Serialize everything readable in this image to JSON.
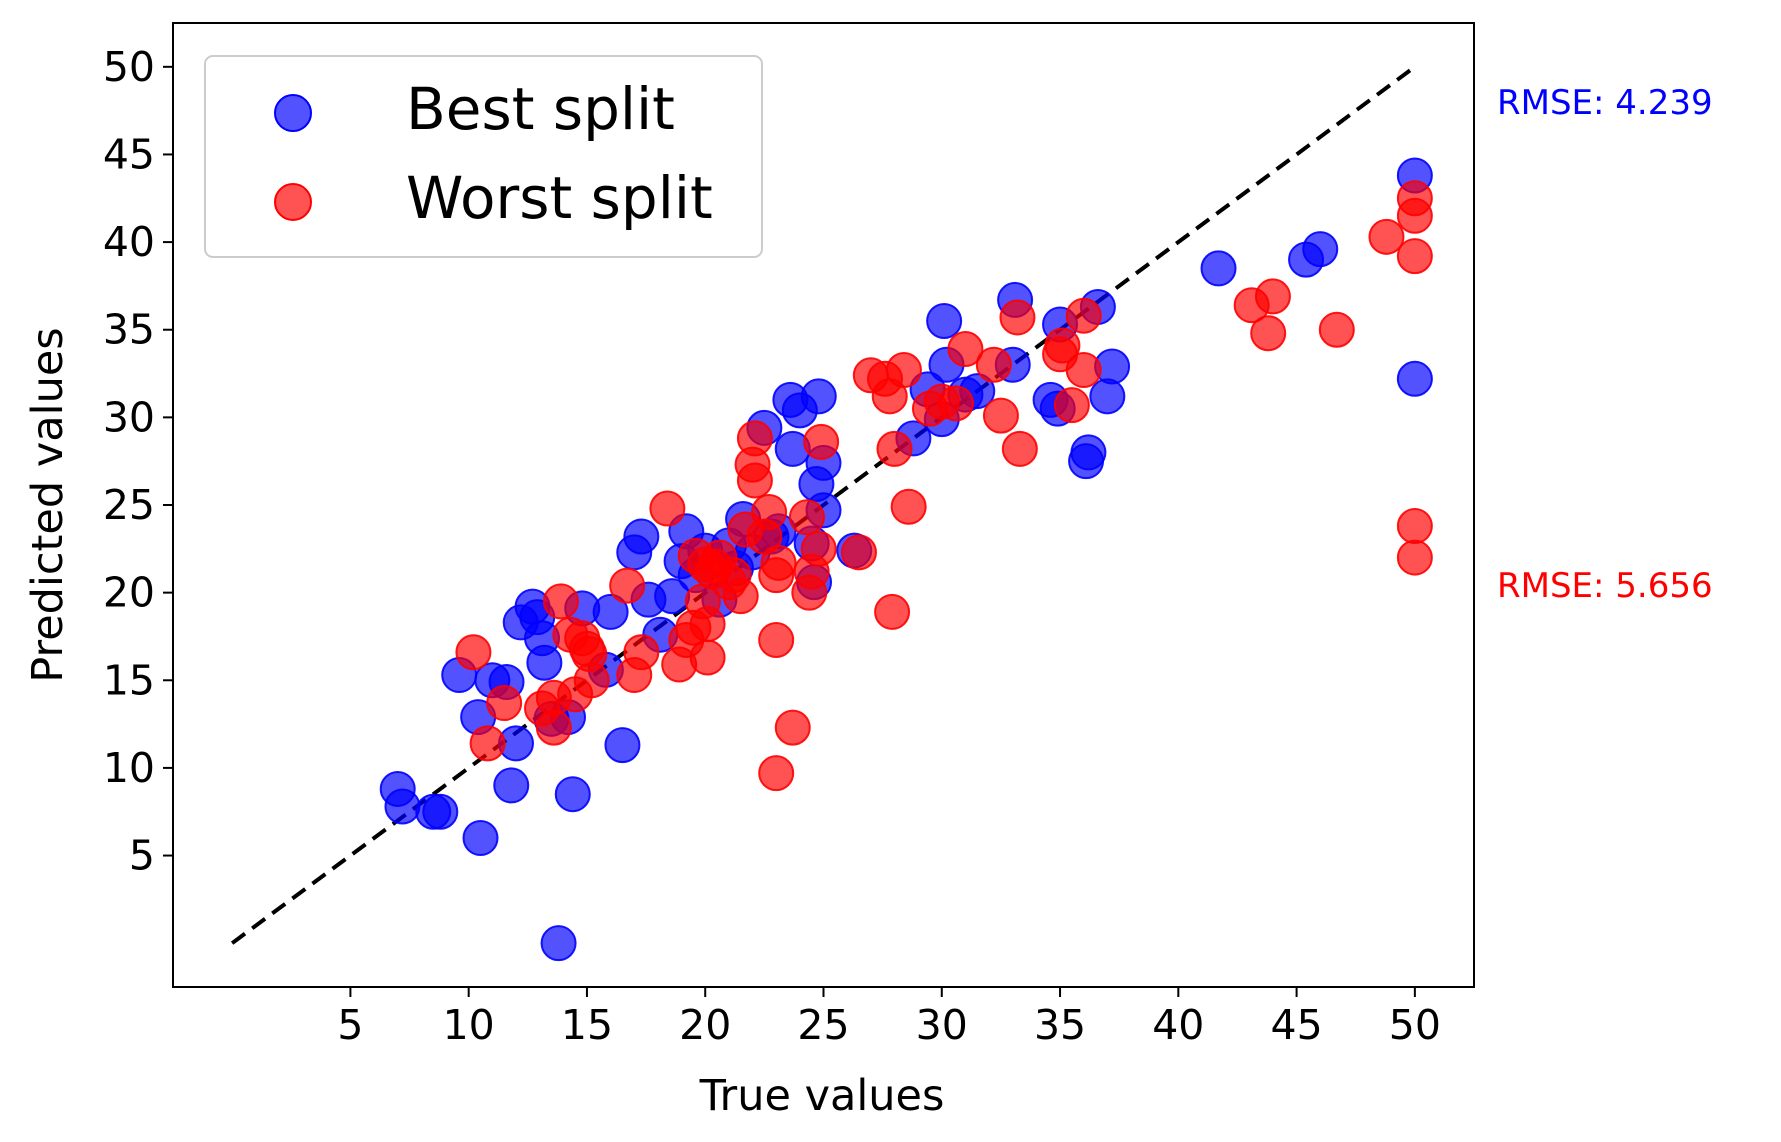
{
  "chart_data": {
    "type": "scatter",
    "title": "",
    "xlabel": "True values",
    "ylabel": "Predicted values",
    "xlim": [
      -2.5,
      52.5
    ],
    "ylim": [
      -2.5,
      52.5
    ],
    "xticks": [
      5,
      10,
      15,
      20,
      25,
      30,
      35,
      40,
      45,
      50
    ],
    "yticks": [
      5,
      10,
      15,
      20,
      25,
      30,
      35,
      40,
      45,
      50
    ],
    "grid": false,
    "legend_position": "top-left",
    "reference_line": {
      "style": "dashed",
      "color": "#000000",
      "from": [
        0,
        0
      ],
      "to": [
        50,
        50
      ]
    },
    "annotations": [
      {
        "text": "RMSE: 4.239",
        "color": "#0000ff"
      },
      {
        "text": "RMSE: 5.656",
        "color": "#ff0000"
      }
    ],
    "series": [
      {
        "name": "Best split",
        "color": "#0000ff",
        "points": [
          [
            7.0,
            8.8
          ],
          [
            7.2,
            7.8
          ],
          [
            8.5,
            7.5
          ],
          [
            8.8,
            7.5
          ],
          [
            9.6,
            15.3
          ],
          [
            10.4,
            12.9
          ],
          [
            10.5,
            6.0
          ],
          [
            11.0,
            15.0
          ],
          [
            11.6,
            14.9
          ],
          [
            11.8,
            9.0
          ],
          [
            12.0,
            11.4
          ],
          [
            12.2,
            18.3
          ],
          [
            12.7,
            19.2
          ],
          [
            12.9,
            18.6
          ],
          [
            13.1,
            17.4
          ],
          [
            13.2,
            16.0
          ],
          [
            13.5,
            12.8
          ],
          [
            13.8,
            0.0
          ],
          [
            14.2,
            12.9
          ],
          [
            14.4,
            8.5
          ],
          [
            14.8,
            19.1
          ],
          [
            15.8,
            15.6
          ],
          [
            16.0,
            18.9
          ],
          [
            16.5,
            11.3
          ],
          [
            17.0,
            22.3
          ],
          [
            17.3,
            23.2
          ],
          [
            17.6,
            19.6
          ],
          [
            18.1,
            17.6
          ],
          [
            18.6,
            19.8
          ],
          [
            19.0,
            21.8
          ],
          [
            19.2,
            23.5
          ],
          [
            19.6,
            21.0
          ],
          [
            20.0,
            22.4
          ],
          [
            20.6,
            19.6
          ],
          [
            21.0,
            22.7
          ],
          [
            21.3,
            21.4
          ],
          [
            21.6,
            24.2
          ],
          [
            22.0,
            22.3
          ],
          [
            22.5,
            29.4
          ],
          [
            22.8,
            23.2
          ],
          [
            23.1,
            23.5
          ],
          [
            23.6,
            31.0
          ],
          [
            23.7,
            28.2
          ],
          [
            24.0,
            30.4
          ],
          [
            24.7,
            26.2
          ],
          [
            24.8,
            31.2
          ],
          [
            25.0,
            27.4
          ],
          [
            25.0,
            24.7
          ],
          [
            24.5,
            22.8
          ],
          [
            24.6,
            20.6
          ],
          [
            26.3,
            22.4
          ],
          [
            28.8,
            28.8
          ],
          [
            29.4,
            31.6
          ],
          [
            30.0,
            29.9
          ],
          [
            30.1,
            35.5
          ],
          [
            30.2,
            33.0
          ],
          [
            31.0,
            31.3
          ],
          [
            31.5,
            31.5
          ],
          [
            33.0,
            33.0
          ],
          [
            33.1,
            36.7
          ],
          [
            34.6,
            31.0
          ],
          [
            34.9,
            30.5
          ],
          [
            35.0,
            35.3
          ],
          [
            36.2,
            28.0
          ],
          [
            36.1,
            27.5
          ],
          [
            36.6,
            36.3
          ],
          [
            37.0,
            31.2
          ],
          [
            37.2,
            32.9
          ],
          [
            41.7,
            38.5
          ],
          [
            45.4,
            39.0
          ],
          [
            46.0,
            39.6
          ],
          [
            50.0,
            43.8
          ],
          [
            50.0,
            32.2
          ]
        ]
      },
      {
        "name": "Worst split",
        "color": "#ff0000",
        "points": [
          [
            10.2,
            16.6
          ],
          [
            10.8,
            11.4
          ],
          [
            11.5,
            13.7
          ],
          [
            13.1,
            13.4
          ],
          [
            13.6,
            12.3
          ],
          [
            13.6,
            14.0
          ],
          [
            13.9,
            19.5
          ],
          [
            14.3,
            17.6
          ],
          [
            14.5,
            14.2
          ],
          [
            14.8,
            17.4
          ],
          [
            15.0,
            16.8
          ],
          [
            15.2,
            15.0
          ],
          [
            15.1,
            16.5
          ],
          [
            16.7,
            20.4
          ],
          [
            17.0,
            15.3
          ],
          [
            17.3,
            16.6
          ],
          [
            18.4,
            24.8
          ],
          [
            18.9,
            15.9
          ],
          [
            19.2,
            17.3
          ],
          [
            19.5,
            18.0
          ],
          [
            19.6,
            22.1
          ],
          [
            19.9,
            19.5
          ],
          [
            20.0,
            21.6
          ],
          [
            20.1,
            18.2
          ],
          [
            20.1,
            16.3
          ],
          [
            20.3,
            21.2
          ],
          [
            20.6,
            22.0
          ],
          [
            21.0,
            20.6
          ],
          [
            21.5,
            19.8
          ],
          [
            21.7,
            23.6
          ],
          [
            22.0,
            27.3
          ],
          [
            22.1,
            28.8
          ],
          [
            22.1,
            26.4
          ],
          [
            22.5,
            23.2
          ],
          [
            22.7,
            24.6
          ],
          [
            23.0,
            21.0
          ],
          [
            23.1,
            21.7
          ],
          [
            23.0,
            17.3
          ],
          [
            23.0,
            9.7
          ],
          [
            23.7,
            12.3
          ],
          [
            24.3,
            24.3
          ],
          [
            24.4,
            20.0
          ],
          [
            24.5,
            21.2
          ],
          [
            24.8,
            22.5
          ],
          [
            24.9,
            28.6
          ],
          [
            26.5,
            22.3
          ],
          [
            27.0,
            32.4
          ],
          [
            27.6,
            32.2
          ],
          [
            27.8,
            31.2
          ],
          [
            27.9,
            18.9
          ],
          [
            28.0,
            28.2
          ],
          [
            28.4,
            32.7
          ],
          [
            28.6,
            24.9
          ],
          [
            29.5,
            30.5
          ],
          [
            30.0,
            30.9
          ],
          [
            30.6,
            30.8
          ],
          [
            31.0,
            33.9
          ],
          [
            32.2,
            33.0
          ],
          [
            32.5,
            30.1
          ],
          [
            33.2,
            35.7
          ],
          [
            33.3,
            28.2
          ],
          [
            35.0,
            33.6
          ],
          [
            35.1,
            34.1
          ],
          [
            35.5,
            30.7
          ],
          [
            36.0,
            32.7
          ],
          [
            36.0,
            35.8
          ],
          [
            43.1,
            36.4
          ],
          [
            43.8,
            34.8
          ],
          [
            44.0,
            36.9
          ],
          [
            46.7,
            35.0
          ],
          [
            48.8,
            40.3
          ],
          [
            50.0,
            42.5
          ],
          [
            50.0,
            41.5
          ],
          [
            50.0,
            39.2
          ],
          [
            50.0,
            23.8
          ],
          [
            50.0,
            22.0
          ],
          [
            20.4,
            21.5
          ],
          [
            21.2,
            21.0
          ]
        ]
      }
    ]
  }
}
